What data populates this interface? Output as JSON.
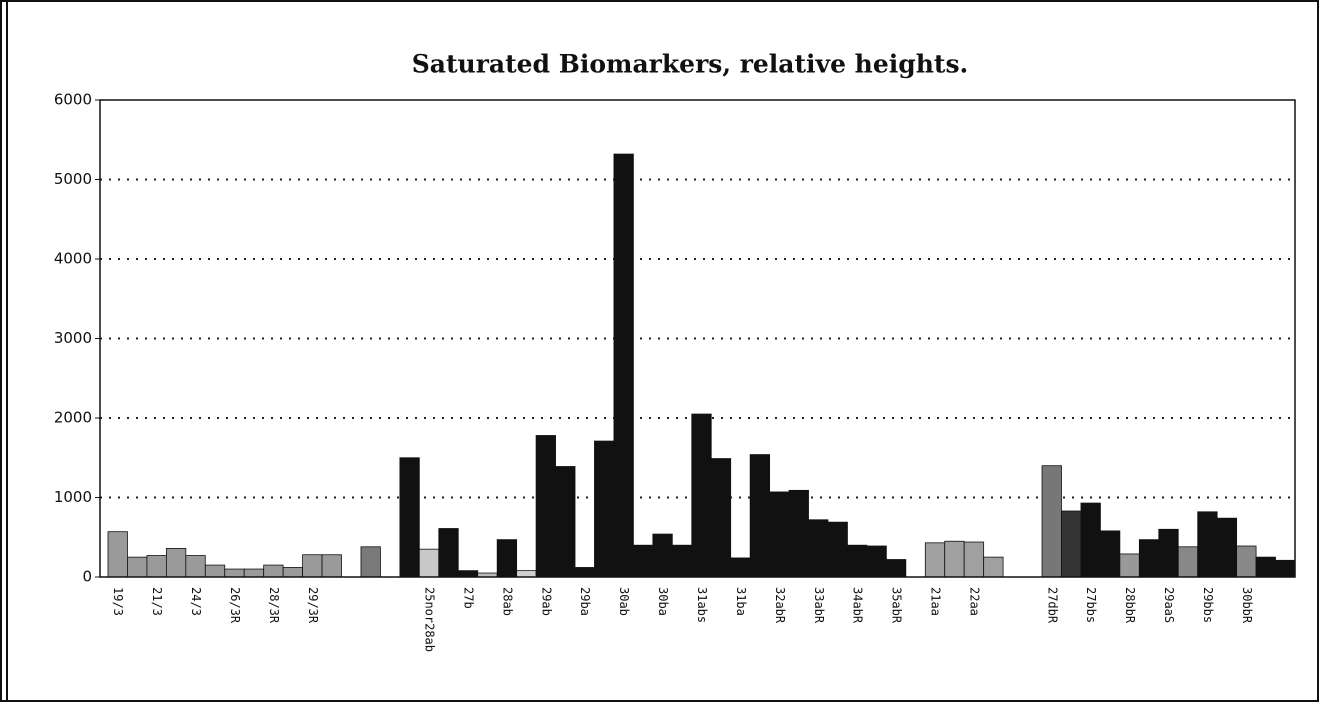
{
  "chart_data": {
    "type": "bar",
    "title": "Saturated Biomarkers, relative heights.",
    "categories": [
      "19/3",
      null,
      "21/3",
      null,
      "24/3",
      null,
      "26/3R",
      null,
      "28/3R",
      null,
      "29/3R",
      null,
      null,
      null,
      null,
      null,
      "25nor28ab",
      null,
      "27b",
      null,
      "28ab",
      null,
      "29ab",
      null,
      "29ba",
      null,
      "30ab",
      null,
      "30ba",
      null,
      "31abs",
      null,
      "31ba",
      null,
      "32abR",
      null,
      "33abR",
      null,
      "34abR",
      null,
      "35abR",
      null,
      "21aa",
      null,
      "22aa",
      null,
      null,
      null,
      "27dbR",
      null,
      "27bbs",
      null,
      "28bbR",
      null,
      "29aaS",
      null,
      "29bbs",
      null,
      "30bbR",
      null,
      null
    ],
    "values": [
      570,
      250,
      270,
      360,
      270,
      150,
      100,
      100,
      150,
      120,
      280,
      280,
      null,
      380,
      null,
      1500,
      350,
      610,
      80,
      50,
      470,
      80,
      1780,
      1390,
      120,
      1710,
      5320,
      400,
      540,
      400,
      2050,
      1490,
      240,
      1540,
      1070,
      1090,
      720,
      690,
      400,
      390,
      220,
      null,
      430,
      450,
      440,
      250,
      null,
      null,
      1400,
      830,
      930,
      580,
      290,
      470,
      600,
      380,
      820,
      740,
      390,
      250,
      210
    ],
    "colors": [
      "#9a9a9a",
      "#9a9a9a",
      "#9a9a9a",
      "#9a9a9a",
      "#9a9a9a",
      "#9a9a9a",
      "#9a9a9a",
      "#9a9a9a",
      "#9a9a9a",
      "#9a9a9a",
      "#9a9a9a",
      "#9a9a9a",
      null,
      "#7a7a7a",
      null,
      "#111111",
      "#c8c8c8",
      "#111111",
      "#111111",
      "#bbbbbb",
      "#111111",
      "#d0d0d0",
      "#111111",
      "#111111",
      "#111111",
      "#111111",
      "#111111",
      "#111111",
      "#111111",
      "#111111",
      "#111111",
      "#111111",
      "#111111",
      "#111111",
      "#111111",
      "#111111",
      "#111111",
      "#111111",
      "#111111",
      "#111111",
      "#111111",
      null,
      "#a0a0a0",
      "#a0a0a0",
      "#a0a0a0",
      "#a0a0a0",
      null,
      null,
      "#777777",
      "#333333",
      "#111111",
      "#111111",
      "#999999",
      "#111111",
      "#111111",
      "#888888",
      "#111111",
      "#111111",
      "#888888",
      "#111111",
      "#111111"
    ],
    "ylim": [
      0,
      6000
    ],
    "yticks": [
      0,
      1000,
      2000,
      3000,
      4000,
      5000,
      6000
    ],
    "grid": true
  }
}
